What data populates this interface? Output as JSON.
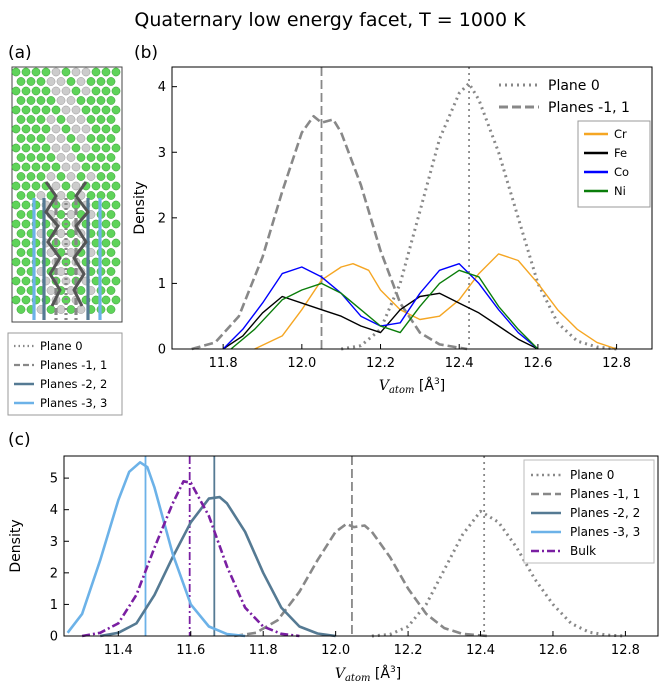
{
  "title": "Quaternary low energy facet, T = 1000 K",
  "panel_labels": {
    "a": "(a)",
    "b": "(b)",
    "c": "(c)"
  },
  "colors": {
    "plane0": "#888888",
    "planes11": "#888888",
    "planes22": "#557a93",
    "planes33": "#6cb2e8",
    "bulk": "#7a1fa2",
    "Cr": "#f5a623",
    "Fe": "#000000",
    "Co": "#0000ff",
    "Ni": "#0a7d0a",
    "atom_green": "#5fd35a",
    "atom_gray": "#cccccc"
  },
  "panel_a": {
    "legend": [
      "Plane 0",
      "Planes -1, 1",
      "Planes -2, 2",
      "Planes -3, 3"
    ]
  },
  "chart_data": [
    {
      "id": "b",
      "type": "line",
      "xlabel": "V_atom [Å³]",
      "ylabel": "Density",
      "xlim": [
        11.67,
        12.89
      ],
      "ylim": [
        0,
        4.3
      ],
      "xticks": [
        "11.8",
        "12.0",
        "12.2",
        "12.4",
        "12.6",
        "12.8"
      ],
      "yticks": [
        "0",
        "1",
        "2",
        "3",
        "4"
      ],
      "legend_main": [
        "Plane 0",
        "Planes -1, 1"
      ],
      "legend_elements": [
        "Cr",
        "Fe",
        "Co",
        "Ni"
      ],
      "vlines": [
        12.05,
        12.425
      ],
      "series": [
        {
          "name": "Plane 0",
          "style": "dotted",
          "color": "plane0",
          "x": [
            12.1,
            12.15,
            12.2,
            12.25,
            12.3,
            12.35,
            12.4,
            12.425,
            12.45,
            12.5,
            12.55,
            12.6,
            12.65,
            12.7,
            12.75,
            12.8
          ],
          "y": [
            0,
            0.05,
            0.3,
            1.0,
            2.1,
            3.2,
            3.9,
            4.05,
            3.8,
            3.0,
            2.0,
            1.0,
            0.4,
            0.12,
            0.03,
            0
          ]
        },
        {
          "name": "Planes -1, 1",
          "style": "dashed",
          "color": "planes11",
          "x": [
            11.72,
            11.78,
            11.84,
            11.9,
            11.95,
            12.0,
            12.03,
            12.05,
            12.08,
            12.1,
            12.15,
            12.2,
            12.25,
            12.3,
            12.35,
            12.42
          ],
          "y": [
            0,
            0.1,
            0.5,
            1.4,
            2.4,
            3.3,
            3.55,
            3.45,
            3.5,
            3.3,
            2.5,
            1.5,
            0.7,
            0.25,
            0.07,
            0
          ]
        },
        {
          "name": "Cr",
          "style": "solid",
          "color": "Cr",
          "x": [
            11.88,
            11.95,
            12.0,
            12.05,
            12.1,
            12.13,
            12.17,
            12.2,
            12.25,
            12.3,
            12.35,
            12.4,
            12.45,
            12.5,
            12.55,
            12.6,
            12.65,
            12.7,
            12.75,
            12.8
          ],
          "y": [
            0,
            0.2,
            0.6,
            1.05,
            1.25,
            1.3,
            1.2,
            0.9,
            0.6,
            0.45,
            0.5,
            0.75,
            1.15,
            1.45,
            1.35,
            1.0,
            0.6,
            0.3,
            0.1,
            0
          ]
        },
        {
          "name": "Fe",
          "style": "solid",
          "color": "Fe",
          "x": [
            11.8,
            11.85,
            11.9,
            11.95,
            12.0,
            12.05,
            12.1,
            12.15,
            12.2,
            12.25,
            12.3,
            12.35,
            12.4,
            12.45,
            12.5,
            12.55,
            12.6
          ],
          "y": [
            0,
            0.2,
            0.55,
            0.8,
            0.7,
            0.6,
            0.5,
            0.35,
            0.25,
            0.6,
            0.8,
            0.85,
            0.7,
            0.55,
            0.35,
            0.15,
            0
          ]
        },
        {
          "name": "Co",
          "style": "solid",
          "color": "Co",
          "x": [
            11.8,
            11.85,
            11.9,
            11.95,
            12.0,
            12.05,
            12.1,
            12.15,
            12.2,
            12.25,
            12.3,
            12.35,
            12.4,
            12.45,
            12.5,
            12.55,
            12.6
          ],
          "y": [
            0,
            0.3,
            0.7,
            1.15,
            1.25,
            1.1,
            0.85,
            0.5,
            0.35,
            0.4,
            0.85,
            1.2,
            1.3,
            1.0,
            0.6,
            0.25,
            0
          ]
        },
        {
          "name": "Ni",
          "style": "solid",
          "color": "Ni",
          "x": [
            11.82,
            11.88,
            11.95,
            12.0,
            12.05,
            12.1,
            12.15,
            12.2,
            12.25,
            12.3,
            12.35,
            12.4,
            12.45,
            12.5,
            12.55,
            12.6
          ],
          "y": [
            0,
            0.3,
            0.75,
            0.9,
            1.0,
            0.85,
            0.6,
            0.35,
            0.25,
            0.65,
            1.0,
            1.2,
            1.1,
            0.65,
            0.3,
            0
          ]
        }
      ]
    },
    {
      "id": "c",
      "type": "line",
      "xlabel": "V_atom [Å³]",
      "ylabel": "Density",
      "xlim": [
        11.25,
        12.89
      ],
      "ylim": [
        0,
        5.7
      ],
      "xticks": [
        "11.4",
        "11.6",
        "11.8",
        "12.0",
        "12.2",
        "12.4",
        "12.6",
        "12.8"
      ],
      "yticks": [
        "0",
        "1",
        "2",
        "3",
        "4",
        "5"
      ],
      "legend": [
        "Plane 0",
        "Planes -1, 1",
        "Planes -2, 2",
        "Planes -3, 3",
        "Bulk"
      ],
      "vlines": [
        {
          "x": 11.475,
          "color": "planes33",
          "style": "solid"
        },
        {
          "x": 11.597,
          "color": "bulk",
          "style": "dashdot"
        },
        {
          "x": 11.665,
          "color": "planes22",
          "style": "solid"
        },
        {
          "x": 12.045,
          "color": "planes11",
          "style": "dashed"
        },
        {
          "x": 12.41,
          "color": "plane0",
          "style": "dotted"
        }
      ],
      "series": [
        {
          "name": "Plane 0",
          "style": "dotted",
          "color": "plane0",
          "x": [
            12.1,
            12.15,
            12.2,
            12.25,
            12.3,
            12.35,
            12.4,
            12.45,
            12.5,
            12.55,
            12.6,
            12.65,
            12.7,
            12.75,
            12.8
          ],
          "y": [
            0,
            0.05,
            0.3,
            1.0,
            2.1,
            3.2,
            3.95,
            3.6,
            2.8,
            1.8,
            1.0,
            0.4,
            0.12,
            0.03,
            0
          ]
        },
        {
          "name": "Planes -1, 1",
          "style": "dashed",
          "color": "planes11",
          "x": [
            11.72,
            11.78,
            11.84,
            11.9,
            11.95,
            12.0,
            12.03,
            12.05,
            12.08,
            12.1,
            12.15,
            12.2,
            12.25,
            12.3,
            12.35,
            12.42
          ],
          "y": [
            0,
            0.1,
            0.5,
            1.4,
            2.4,
            3.3,
            3.55,
            3.45,
            3.5,
            3.3,
            2.5,
            1.5,
            0.7,
            0.25,
            0.07,
            0
          ]
        },
        {
          "name": "Planes -2, 2",
          "style": "solid",
          "color": "planes22",
          "x": [
            11.35,
            11.4,
            11.45,
            11.5,
            11.55,
            11.6,
            11.65,
            11.68,
            11.7,
            11.75,
            11.8,
            11.85,
            11.9,
            11.95,
            12.0
          ],
          "y": [
            0,
            0.1,
            0.4,
            1.3,
            2.5,
            3.6,
            4.35,
            4.4,
            4.2,
            3.3,
            2.0,
            0.9,
            0.3,
            0.08,
            0
          ]
        },
        {
          "name": "Planes -3, 3",
          "style": "solid",
          "color": "planes33",
          "x": [
            11.26,
            11.3,
            11.35,
            11.4,
            11.43,
            11.46,
            11.48,
            11.5,
            11.55,
            11.6,
            11.65,
            11.7,
            11.75
          ],
          "y": [
            0.1,
            0.7,
            2.4,
            4.3,
            5.2,
            5.5,
            5.35,
            4.7,
            2.6,
            1.0,
            0.3,
            0.06,
            0
          ]
        },
        {
          "name": "Bulk",
          "style": "dashdot",
          "color": "bulk",
          "x": [
            11.3,
            11.35,
            11.4,
            11.45,
            11.5,
            11.55,
            11.58,
            11.6,
            11.65,
            11.7,
            11.75,
            11.8,
            11.85,
            11.9
          ],
          "y": [
            0,
            0.1,
            0.4,
            1.3,
            2.8,
            4.2,
            4.9,
            4.85,
            3.8,
            2.2,
            0.9,
            0.3,
            0.07,
            0
          ]
        }
      ]
    }
  ]
}
